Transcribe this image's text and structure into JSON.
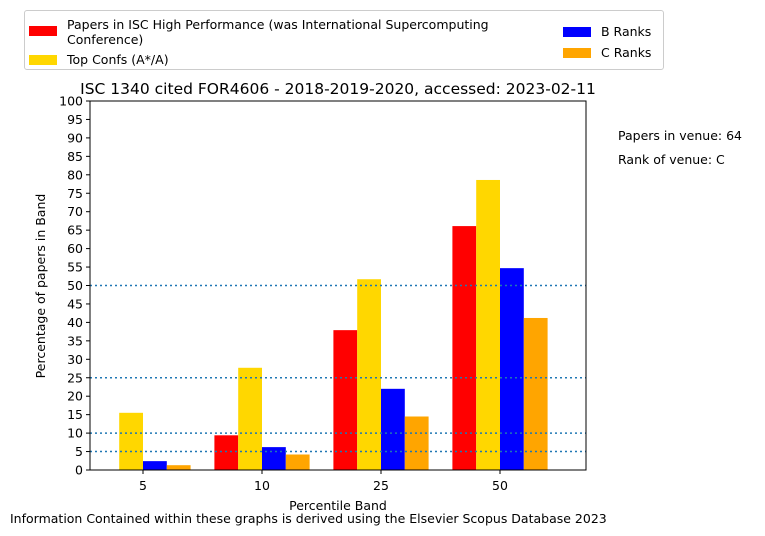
{
  "chart_data": {
    "type": "bar",
    "title": "ISC 1340 cited FOR4606 - 2018-2019-2020, accessed: 2023-02-11",
    "xlabel": "Percentile Band",
    "ylabel": "Percentage of papers in Band",
    "categories": [
      "5",
      "10",
      "25",
      "50"
    ],
    "ylim": [
      0,
      100
    ],
    "yticks": [
      0,
      5,
      10,
      15,
      20,
      25,
      30,
      35,
      40,
      45,
      50,
      55,
      60,
      65,
      70,
      75,
      80,
      85,
      90,
      95,
      100
    ],
    "reference_lines": [
      5,
      10,
      25,
      50
    ],
    "grid": false,
    "legend_position": "top",
    "series": [
      {
        "name": "Papers in ISC High Performance (was International Supercomputing Conference)",
        "color": "#ff0000",
        "values": [
          0,
          9.4,
          37.9,
          66.1
        ]
      },
      {
        "name": "Top Confs (A*/A)",
        "color": "#ffd700",
        "values": [
          15.5,
          27.7,
          51.7,
          78.6
        ]
      },
      {
        "name": "B Ranks",
        "color": "#0000ff",
        "values": [
          2.4,
          6.2,
          22.0,
          54.7
        ]
      },
      {
        "name": "C Ranks",
        "color": "#ffa500",
        "values": [
          1.3,
          4.2,
          14.5,
          41.2
        ]
      }
    ]
  },
  "legend": {
    "items": [
      {
        "label": "Papers in ISC High Performance (was International Supercomputing Conference)",
        "color": "#ff0000"
      },
      {
        "label": "Top Confs (A*/A)",
        "color": "#ffd700"
      },
      {
        "label": "B Ranks",
        "color": "#0000ff"
      },
      {
        "label": "C Ranks",
        "color": "#ffa500"
      }
    ]
  },
  "side_notes": {
    "papers_in_venue": "Papers in venue: 64",
    "rank_of_venue": "Rank of venue: C"
  },
  "footer": "Information Contained within these graphs is derived using the Elsevier Scopus Database 2023"
}
